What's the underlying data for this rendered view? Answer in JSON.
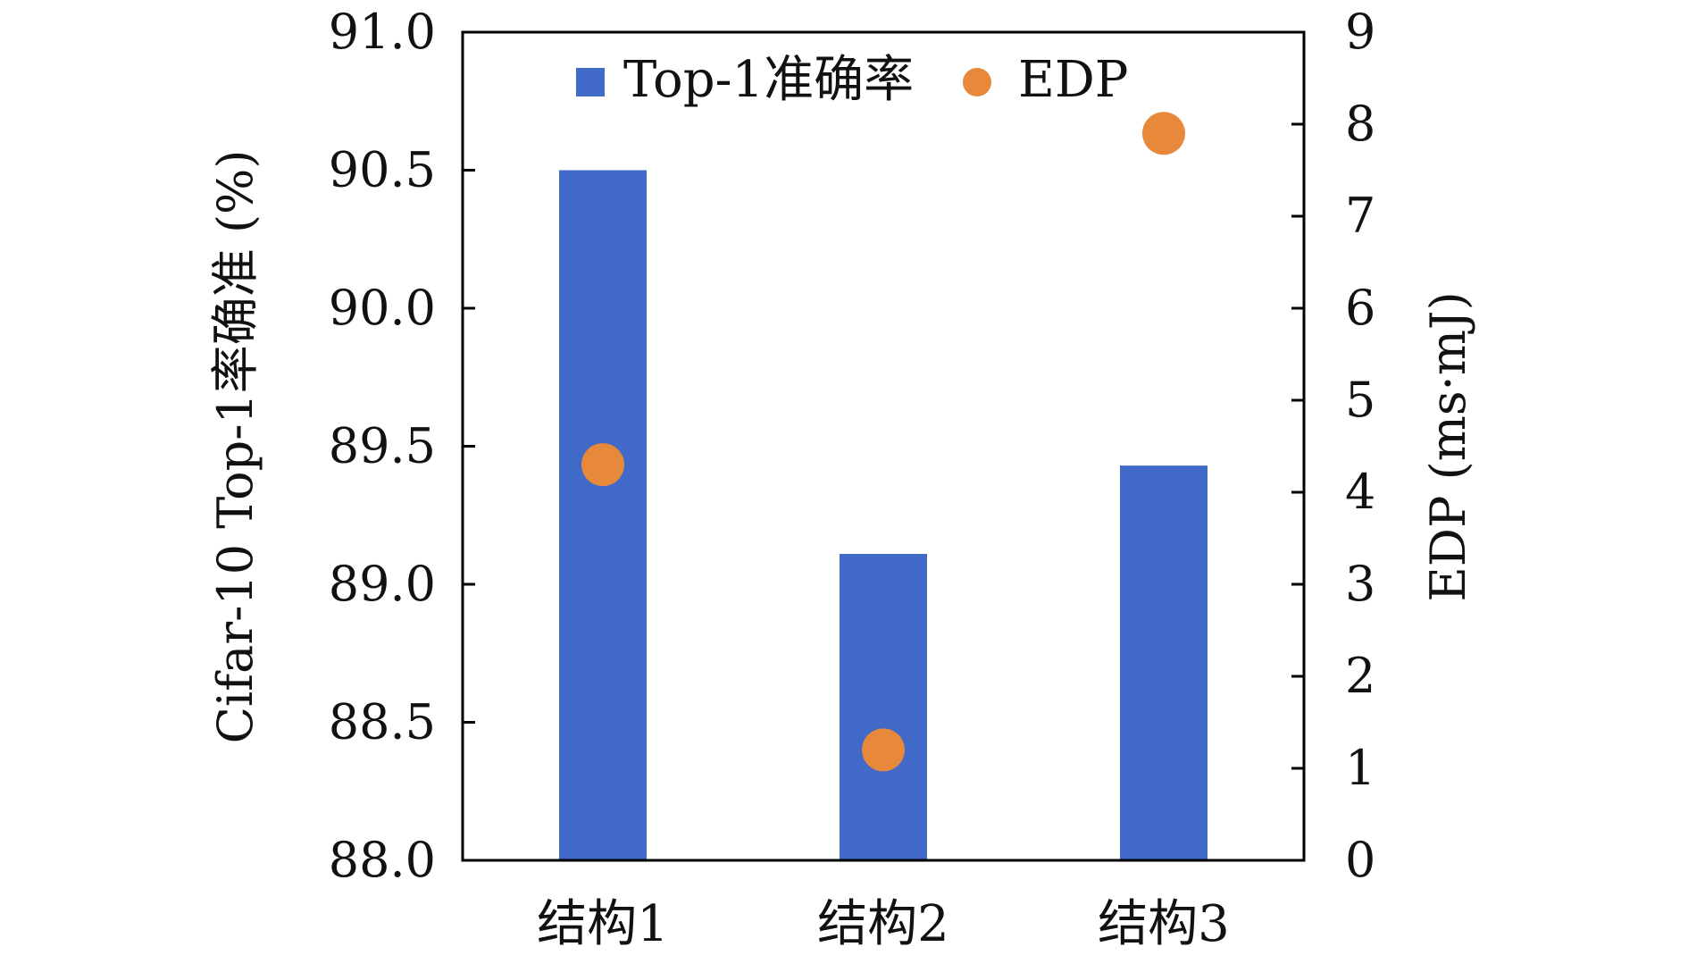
{
  "chart_data": {
    "type": "bar",
    "categories": [
      "结构1",
      "结构2",
      "结构3"
    ],
    "series": [
      {
        "name": "Top-1准确率",
        "kind": "bar",
        "axis": "left",
        "color": "#4169C8",
        "values": [
          90.5,
          89.11,
          89.43
        ]
      },
      {
        "name": "EDP",
        "kind": "scatter",
        "axis": "right",
        "color": "#E8883A",
        "values": [
          4.3,
          1.2,
          7.9
        ]
      }
    ],
    "y_left": {
      "label": "Cifar-10 Top-1率确准 (%)",
      "lim": [
        88.0,
        91.0
      ],
      "ticks": [
        "88.0",
        "88.5",
        "89.0",
        "89.5",
        "90.0",
        "90.5",
        "91.0"
      ]
    },
    "y_right": {
      "label": "EDP (ms·mJ)",
      "lim": [
        0,
        9
      ],
      "ticks": [
        "0",
        "1",
        "2",
        "3",
        "4",
        "5",
        "6",
        "7",
        "8",
        "9"
      ]
    },
    "legend": {
      "placement": "top-center",
      "entries": [
        "Top-1准确率",
        "EDP"
      ]
    },
    "grid": false
  }
}
